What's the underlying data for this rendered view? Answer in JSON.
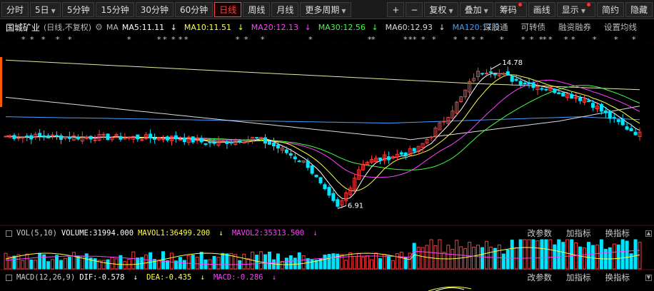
{
  "toolbar": {
    "left": [
      {
        "label": "分时",
        "active": false,
        "caret": false
      },
      {
        "label": "5日",
        "active": false,
        "caret": true
      },
      {
        "label": "5分钟",
        "active": false,
        "caret": false
      },
      {
        "label": "15分钟",
        "active": false,
        "caret": false
      },
      {
        "label": "30分钟",
        "active": false,
        "caret": false
      },
      {
        "label": "60分钟",
        "active": false,
        "caret": false
      },
      {
        "label": "日线",
        "active": true,
        "caret": false
      },
      {
        "label": "周线",
        "active": false,
        "caret": false
      },
      {
        "label": "月线",
        "active": false,
        "caret": false
      },
      {
        "label": "更多周期",
        "active": false,
        "caret": true
      }
    ],
    "right": [
      {
        "label": "+",
        "caret": false,
        "dot": false
      },
      {
        "label": "−",
        "caret": false,
        "dot": false
      },
      {
        "label": "复权",
        "caret": true,
        "dot": false
      },
      {
        "label": "叠加",
        "caret": true,
        "dot": false
      },
      {
        "label": "筹码",
        "caret": false,
        "dot": true
      },
      {
        "label": "画线",
        "caret": false,
        "dot": false
      },
      {
        "label": "显示",
        "caret": true,
        "dot": true
      },
      {
        "label": "简约",
        "caret": false,
        "dot": false
      },
      {
        "label": "隐藏",
        "caret": false,
        "dot": false
      }
    ]
  },
  "info": {
    "stock_name": "国城矿业",
    "period_text": "(日线,不复权)",
    "ma_label": "MA",
    "ma5": {
      "text": "MA5:11.11",
      "arrow": "↓",
      "color": "#ffffff"
    },
    "ma10": {
      "text": "MA10:11.51",
      "arrow": "↓",
      "color": "#ffff40"
    },
    "ma20": {
      "text": "MA20:12.13",
      "arrow": "↓",
      "color": "#ff40ff"
    },
    "ma30": {
      "text": "MA30:12.56",
      "arrow": "↓",
      "color": "#40ff40"
    },
    "ma60": {
      "text": "MA60:12.93",
      "arrow": "↓",
      "color": "#dddddd"
    },
    "ma120": {
      "text": "MA120:11.3",
      "arrow": "",
      "color": "#40a0ff"
    }
  },
  "links": [
    "深股通",
    "可转债",
    "融资融券",
    "设置均线"
  ],
  "price_labels": {
    "high": "14.78",
    "low": "6.91"
  },
  "vol_panel": {
    "label": "VOL(5,10)",
    "volume": "VOLUME:31994.000",
    "mavol1": "MAVOL1:36499.200",
    "mavol1_arrow": "↓",
    "mavol2": "MAVOL2:35313.500",
    "mavol2_arrow": "↓",
    "actions": [
      "改参数",
      "加指标",
      "换指标"
    ]
  },
  "macd_panel": {
    "label": "MACD(12,26,9)",
    "dif": "DIF:-0.578",
    "dif_arrow": "↓",
    "dea": "DEA:-0.435",
    "dea_arrow": "↓",
    "macd": "MACD:-0.286",
    "macd_arrow": "↓",
    "actions": [
      "改参数",
      "加指标",
      "换指标"
    ]
  },
  "colors": {
    "up": "#ff3b3b",
    "down": "#00e5ff",
    "ma5": "#ffffff",
    "ma10": "#ffff40",
    "ma20": "#ff40ff",
    "ma30": "#40ff40",
    "ma60": "#dddddd",
    "ma120": "#40a0ff"
  }
}
